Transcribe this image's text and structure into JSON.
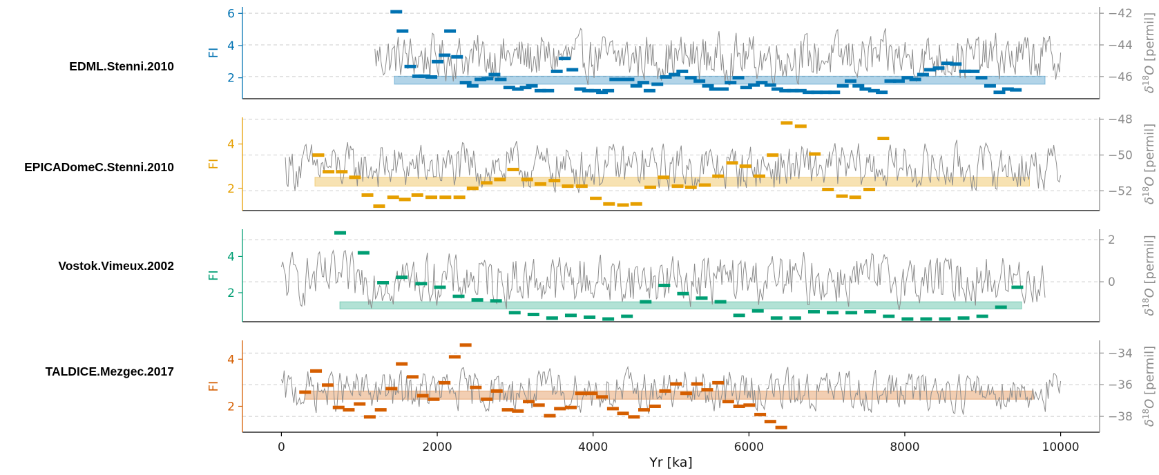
{
  "figure": {
    "xlabel": "Yr [ka]",
    "x_ticks": [
      "0",
      "2000",
      "4000",
      "6000",
      "8000",
      "10000"
    ]
  },
  "chart_data": [
    {
      "type": "line",
      "record": "EDML.Stenni.2010",
      "color": "#0072b2",
      "fi_label": "FI",
      "fi_ticks": [
        2,
        4,
        6
      ],
      "ylim_fi": [
        0.7,
        6.4
      ],
      "right_label": "δ18O [permil]",
      "right_ticks": [
        -42,
        -44,
        -46
      ],
      "ylim_right": [
        -47.4,
        -41.6
      ],
      "trace_range": [
        1200,
        10000
      ],
      "trace_mean": -44.8,
      "trace_spread": 1.7,
      "band": {
        "x": [
          1450,
          9800
        ],
        "y": [
          1.6,
          2.1
        ]
      },
      "fi_segments": [
        [
          1470,
          6.1
        ],
        [
          1550,
          4.9
        ],
        [
          1650,
          2.7
        ],
        [
          1750,
          2.1
        ],
        [
          1830,
          2.1
        ],
        [
          1920,
          2.05
        ],
        [
          2000,
          3.0
        ],
        [
          2090,
          3.4
        ],
        [
          2160,
          4.9
        ],
        [
          2250,
          3.3
        ],
        [
          2360,
          1.7
        ],
        [
          2450,
          1.5
        ],
        [
          2550,
          1.9
        ],
        [
          2640,
          1.95
        ],
        [
          2730,
          2.2
        ],
        [
          2810,
          1.9
        ],
        [
          2920,
          1.4
        ],
        [
          3030,
          1.3
        ],
        [
          3130,
          1.4
        ],
        [
          3210,
          1.5
        ],
        [
          3320,
          1.2
        ],
        [
          3420,
          1.2
        ],
        [
          3530,
          2.4
        ],
        [
          3630,
          3.2
        ],
        [
          3730,
          2.5
        ],
        [
          3830,
          1.3
        ],
        [
          3930,
          1.2
        ],
        [
          4020,
          1.2
        ],
        [
          4110,
          1.1
        ],
        [
          4190,
          1.2
        ],
        [
          4280,
          1.9
        ],
        [
          4370,
          1.9
        ],
        [
          4450,
          1.9
        ],
        [
          4550,
          1.5
        ],
        [
          4640,
          1.7
        ],
        [
          4720,
          1.2
        ],
        [
          4820,
          1.6
        ],
        [
          4930,
          2.05
        ],
        [
          5040,
          2.2
        ],
        [
          5140,
          2.4
        ],
        [
          5250,
          2.0
        ],
        [
          5360,
          1.8
        ],
        [
          5470,
          1.5
        ],
        [
          5560,
          1.3
        ],
        [
          5660,
          1.3
        ],
        [
          5760,
          1.7
        ],
        [
          5860,
          2.0
        ],
        [
          5960,
          1.4
        ],
        [
          6060,
          1.55
        ],
        [
          6160,
          1.7
        ],
        [
          6270,
          1.55
        ],
        [
          6360,
          1.3
        ],
        [
          6460,
          1.2
        ],
        [
          6560,
          1.2
        ],
        [
          6660,
          1.2
        ],
        [
          6760,
          1.1
        ],
        [
          6870,
          1.1
        ],
        [
          6980,
          1.1
        ],
        [
          7090,
          1.1
        ],
        [
          7200,
          1.5
        ],
        [
          7300,
          1.8
        ],
        [
          7400,
          1.5
        ],
        [
          7490,
          1.3
        ],
        [
          7600,
          1.2
        ],
        [
          7700,
          1.1
        ],
        [
          7810,
          1.8
        ],
        [
          7920,
          1.8
        ],
        [
          8030,
          2.0
        ],
        [
          8130,
          1.9
        ],
        [
          8230,
          2.2
        ],
        [
          8320,
          2.5
        ],
        [
          8430,
          2.6
        ],
        [
          8540,
          2.9
        ],
        [
          8650,
          2.85
        ],
        [
          8770,
          2.4
        ],
        [
          8880,
          2.4
        ],
        [
          8980,
          2.0
        ],
        [
          9090,
          1.5
        ],
        [
          9210,
          1.1
        ],
        [
          9320,
          1.3
        ],
        [
          9420,
          1.25
        ]
      ]
    },
    {
      "type": "line",
      "record": "EPICADomeC.Stenni.2010",
      "color": "#e69f00",
      "fi_label": "FI",
      "fi_ticks": [
        2,
        4
      ],
      "ylim_fi": [
        1.0,
        5.2
      ],
      "right_label": "δ18O [permil]",
      "right_ticks": [
        -48,
        -50,
        -52
      ],
      "ylim_right": [
        -53.1,
        -47.9
      ],
      "trace_range": [
        50,
        10000
      ],
      "trace_mean": -50.7,
      "trace_spread": 1.5,
      "band": {
        "x": [
          430,
          9600
        ],
        "y": [
          2.1,
          2.5
        ]
      },
      "fi_segments": [
        [
          470,
          3.5
        ],
        [
          600,
          2.75
        ],
        [
          770,
          2.75
        ],
        [
          940,
          2.5
        ],
        [
          1100,
          1.7
        ],
        [
          1250,
          1.2
        ],
        [
          1430,
          1.6
        ],
        [
          1580,
          1.5
        ],
        [
          1740,
          1.7
        ],
        [
          1920,
          1.6
        ],
        [
          2100,
          1.6
        ],
        [
          2280,
          1.6
        ],
        [
          2450,
          2.0
        ],
        [
          2630,
          2.25
        ],
        [
          2800,
          2.4
        ],
        [
          2970,
          2.85
        ],
        [
          3150,
          2.4
        ],
        [
          3320,
          2.2
        ],
        [
          3500,
          2.35
        ],
        [
          3670,
          2.1
        ],
        [
          3850,
          2.1
        ],
        [
          4030,
          1.55
        ],
        [
          4200,
          1.3
        ],
        [
          4380,
          1.25
        ],
        [
          4550,
          1.3
        ],
        [
          4730,
          2.05
        ],
        [
          4900,
          2.5
        ],
        [
          5080,
          2.1
        ],
        [
          5250,
          2.05
        ],
        [
          5430,
          2.15
        ],
        [
          5600,
          2.55
        ],
        [
          5780,
          3.15
        ],
        [
          5950,
          3.0
        ],
        [
          6130,
          2.55
        ],
        [
          6300,
          3.5
        ],
        [
          6480,
          4.95
        ],
        [
          6660,
          4.8
        ],
        [
          6840,
          3.55
        ],
        [
          7010,
          1.95
        ],
        [
          7190,
          1.65
        ],
        [
          7360,
          1.6
        ],
        [
          7540,
          1.95
        ],
        [
          7720,
          4.25
        ]
      ]
    },
    {
      "type": "line",
      "record": "Vostok.Vimeux.2002",
      "color": "#009e73",
      "fi_label": "FI",
      "fi_ticks": [
        2,
        4
      ],
      "ylim_fi": [
        0.4,
        5.5
      ],
      "right_label": "δ18O [permil]",
      "right_ticks": [
        2,
        0
      ],
      "ylim_right": [
        -1.9,
        2.5
      ],
      "trace_range": [
        0,
        9800
      ],
      "trace_mean": 0.1,
      "trace_spread": 1.4,
      "band": {
        "x": [
          750,
          9500
        ],
        "y": [
          1.1,
          1.5
        ]
      },
      "fi_segments": [
        [
          750,
          5.3
        ],
        [
          1050,
          4.2
        ],
        [
          1300,
          2.55
        ],
        [
          1540,
          2.85
        ],
        [
          1790,
          2.5
        ],
        [
          2030,
          2.3
        ],
        [
          2270,
          1.8
        ],
        [
          2510,
          1.6
        ],
        [
          2750,
          1.55
        ],
        [
          2990,
          0.9
        ],
        [
          3230,
          0.8
        ],
        [
          3470,
          0.6
        ],
        [
          3710,
          0.75
        ],
        [
          3950,
          0.65
        ],
        [
          4190,
          0.55
        ],
        [
          4430,
          0.7
        ],
        [
          4670,
          1.5
        ],
        [
          4910,
          2.4
        ],
        [
          5150,
          1.95
        ],
        [
          5390,
          1.7
        ],
        [
          5630,
          1.5
        ],
        [
          5870,
          0.75
        ],
        [
          6110,
          1.0
        ],
        [
          6350,
          0.6
        ],
        [
          6590,
          0.6
        ],
        [
          6830,
          0.95
        ],
        [
          7070,
          0.9
        ],
        [
          7310,
          0.9
        ],
        [
          7550,
          0.95
        ],
        [
          7790,
          0.7
        ],
        [
          8030,
          0.55
        ],
        [
          8270,
          0.55
        ],
        [
          8510,
          0.55
        ],
        [
          8750,
          0.6
        ],
        [
          8990,
          0.7
        ],
        [
          9230,
          1.2
        ],
        [
          9440,
          2.3
        ]
      ]
    },
    {
      "type": "line",
      "record": "TALDICE.Mezgec.2017",
      "color": "#d55e00",
      "fi_label": "FI",
      "fi_ticks": [
        2,
        4
      ],
      "ylim_fi": [
        0.9,
        4.8
      ],
      "right_label": "δ18O [permil]",
      "right_ticks": [
        -34,
        -36,
        -38
      ],
      "ylim_right": [
        -39.0,
        -33.2
      ],
      "trace_range": [
        0,
        10000
      ],
      "trace_mean": -36.4,
      "trace_spread": 1.5,
      "band": {
        "x": [
          300,
          9650
        ],
        "y": [
          2.3,
          2.65
        ]
      },
      "fi_segments": [
        [
          300,
          2.6
        ],
        [
          440,
          3.5
        ],
        [
          590,
          2.9
        ],
        [
          730,
          1.95
        ],
        [
          860,
          1.85
        ],
        [
          1000,
          2.1
        ],
        [
          1130,
          1.55
        ],
        [
          1270,
          1.85
        ],
        [
          1410,
          2.75
        ],
        [
          1540,
          3.8
        ],
        [
          1680,
          3.25
        ],
        [
          1810,
          2.45
        ],
        [
          1950,
          2.3
        ],
        [
          2090,
          3.0
        ],
        [
          2220,
          4.1
        ],
        [
          2360,
          4.6
        ],
        [
          2490,
          2.8
        ],
        [
          2630,
          2.3
        ],
        [
          2760,
          2.65
        ],
        [
          2900,
          1.85
        ],
        [
          3030,
          1.8
        ],
        [
          3170,
          2.2
        ],
        [
          3300,
          2.05
        ],
        [
          3440,
          1.6
        ],
        [
          3570,
          1.9
        ],
        [
          3710,
          1.95
        ],
        [
          3840,
          2.55
        ],
        [
          3980,
          2.55
        ],
        [
          4110,
          2.4
        ],
        [
          4250,
          1.9
        ],
        [
          4380,
          1.7
        ],
        [
          4520,
          1.55
        ],
        [
          4650,
          1.85
        ],
        [
          4790,
          2.0
        ],
        [
          4920,
          2.65
        ],
        [
          5060,
          2.95
        ],
        [
          5190,
          2.55
        ],
        [
          5330,
          2.95
        ],
        [
          5460,
          2.7
        ],
        [
          5600,
          3.0
        ],
        [
          5730,
          2.2
        ],
        [
          5870,
          2.0
        ],
        [
          6000,
          2.05
        ],
        [
          6140,
          1.65
        ],
        [
          6270,
          1.35
        ],
        [
          6410,
          1.1
        ]
      ]
    }
  ]
}
